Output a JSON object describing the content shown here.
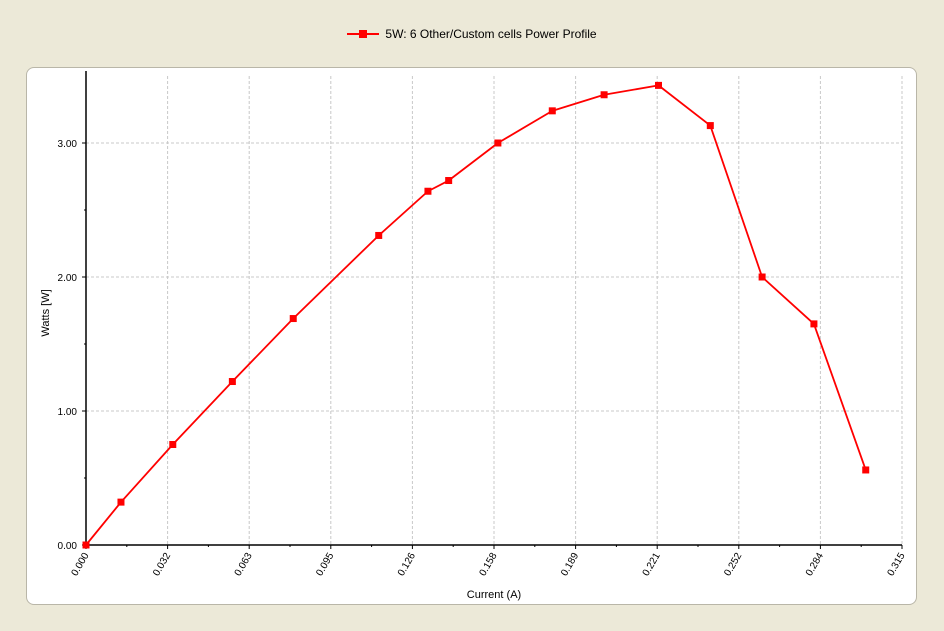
{
  "legend": {
    "label": "5W: 6 Other/Custom cells Power Profile",
    "color": "#ff0000"
  },
  "chart_data": {
    "type": "line",
    "xlabel": "Current (A)",
    "ylabel": "Watts [W]",
    "xlim": [
      0.0,
      0.315
    ],
    "ylim": [
      0.0,
      3.5
    ],
    "x_ticks": [
      "0.000",
      "0.032",
      "0.063",
      "0.095",
      "0.126",
      "0.158",
      "0.189",
      "0.221",
      "0.252",
      "0.284",
      "0.315"
    ],
    "y_ticks": [
      "0.00",
      "1.00",
      "2.00",
      "3.00"
    ],
    "grid": true,
    "legend_position": "top-center",
    "series": [
      {
        "name": "5W: 6 Other/Custom cells Power Profile",
        "color": "#ff0000",
        "x": [
          0.0,
          0.0135,
          0.0335,
          0.0565,
          0.08,
          0.113,
          0.132,
          0.14,
          0.159,
          0.18,
          0.2,
          0.221,
          0.241,
          0.261,
          0.281,
          0.301
        ],
        "y": [
          0.0,
          0.32,
          0.75,
          1.22,
          1.69,
          2.31,
          2.64,
          2.72,
          3.0,
          3.24,
          3.36,
          3.43,
          3.13,
          2.0,
          1.65,
          0.56
        ]
      }
    ]
  }
}
